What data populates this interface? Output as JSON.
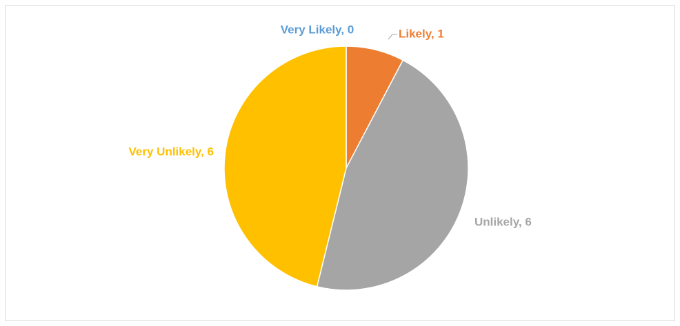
{
  "chart_data": {
    "type": "pie",
    "categories": [
      "Very Likely",
      "Likely",
      "Unlikely",
      "Very Unlikely"
    ],
    "values": [
      0,
      1,
      6,
      6
    ],
    "value_labels": [
      "Very Likely, 0",
      "Likely, 1",
      "Unlikely, 6",
      "Very Unlikely, 6"
    ],
    "colors": [
      "#5b9bd5",
      "#ed7d31",
      "#a5a5a5",
      "#ffc000"
    ]
  }
}
